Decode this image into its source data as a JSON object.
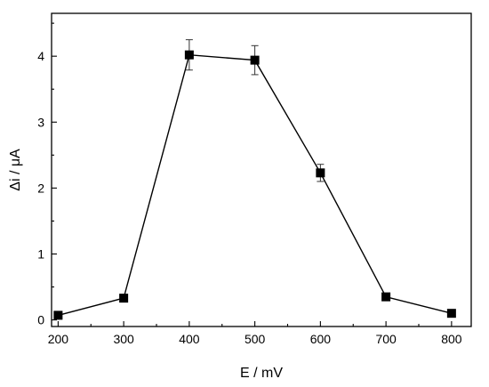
{
  "chart_data": {
    "type": "line",
    "title": "",
    "xlabel": "E / mV",
    "ylabel": "Δi / μA",
    "xlim": [
      190,
      830
    ],
    "ylim": [
      -0.1,
      4.65
    ],
    "xticks": [
      200,
      300,
      400,
      500,
      600,
      700,
      800
    ],
    "yticks": [
      0,
      1,
      2,
      3,
      4
    ],
    "grid": false,
    "legend": "none",
    "marker": "square",
    "color": "#000000",
    "series": [
      {
        "x": [
          200,
          300,
          400,
          500,
          600,
          700,
          800
        ],
        "y": [
          0.07,
          0.33,
          4.02,
          3.94,
          2.23,
          0.35,
          0.1
        ],
        "error": [
          0,
          0,
          0.23,
          0.22,
          0.13,
          0,
          0
        ]
      }
    ]
  }
}
